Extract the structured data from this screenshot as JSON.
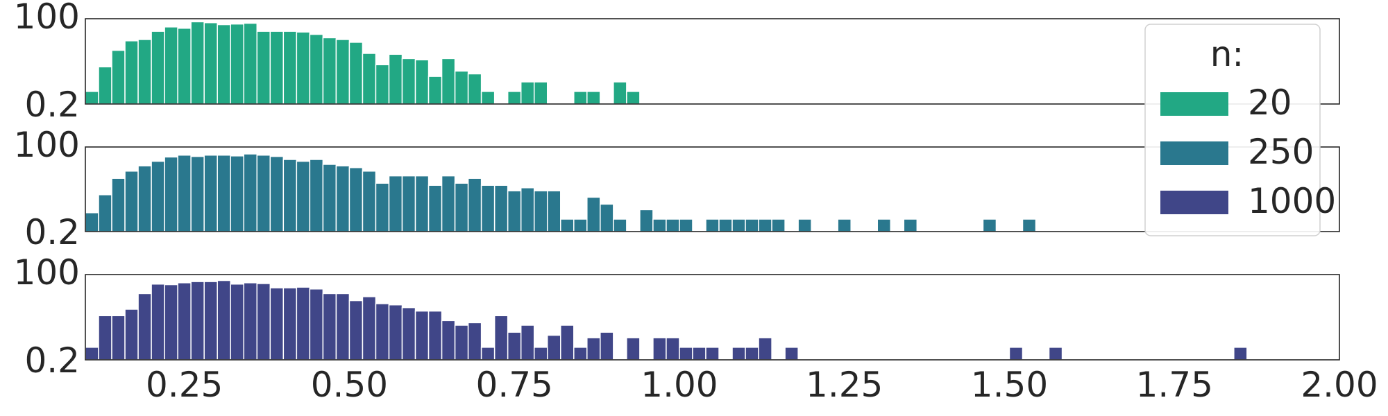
{
  "chart_data": {
    "type": "bar",
    "y_scale": "log",
    "y_ticks": [
      "100",
      "0.2"
    ],
    "x_ticks": [
      "0.25",
      "0.50",
      "0.75",
      "1.00",
      "1.25",
      "1.50",
      "1.75",
      "2.00"
    ],
    "xlim": [
      0.1,
      2.0
    ],
    "ylim": [
      0.2,
      100
    ],
    "grid": false,
    "legend": {
      "title": "n:",
      "placement": "top-right"
    },
    "bin_width": 0.02,
    "series": [
      {
        "name": "20",
        "color": "#22a884",
        "values": [
          [
            0.11,
            0.5
          ],
          [
            0.13,
            3
          ],
          [
            0.15,
            10
          ],
          [
            0.17,
            20
          ],
          [
            0.19,
            22
          ],
          [
            0.21,
            40
          ],
          [
            0.23,
            55
          ],
          [
            0.25,
            50
          ],
          [
            0.27,
            80
          ],
          [
            0.29,
            75
          ],
          [
            0.31,
            65
          ],
          [
            0.33,
            68
          ],
          [
            0.35,
            72
          ],
          [
            0.37,
            40
          ],
          [
            0.39,
            40
          ],
          [
            0.41,
            40
          ],
          [
            0.43,
            38
          ],
          [
            0.45,
            32
          ],
          [
            0.47,
            25
          ],
          [
            0.49,
            22
          ],
          [
            0.51,
            18
          ],
          [
            0.53,
            8
          ],
          [
            0.55,
            3.5
          ],
          [
            0.57,
            7.5
          ],
          [
            0.59,
            5.5
          ],
          [
            0.61,
            5
          ],
          [
            0.63,
            1.5
          ],
          [
            0.65,
            5.5
          ],
          [
            0.67,
            2.2
          ],
          [
            0.69,
            1.8
          ],
          [
            0.71,
            0.5
          ],
          [
            0.75,
            0.5
          ],
          [
            0.77,
            1
          ],
          [
            0.79,
            1
          ],
          [
            0.85,
            0.5
          ],
          [
            0.87,
            0.5
          ],
          [
            0.91,
            1
          ],
          [
            0.93,
            0.5
          ]
        ]
      },
      {
        "name": "250",
        "color": "#2a788e",
        "values": [
          [
            0.11,
            0.8
          ],
          [
            0.13,
            3
          ],
          [
            0.15,
            10
          ],
          [
            0.17,
            17
          ],
          [
            0.19,
            25
          ],
          [
            0.21,
            35
          ],
          [
            0.23,
            48
          ],
          [
            0.25,
            55
          ],
          [
            0.27,
            50
          ],
          [
            0.29,
            55
          ],
          [
            0.31,
            55
          ],
          [
            0.33,
            52
          ],
          [
            0.35,
            60
          ],
          [
            0.37,
            55
          ],
          [
            0.39,
            50
          ],
          [
            0.41,
            40
          ],
          [
            0.43,
            35
          ],
          [
            0.45,
            40
          ],
          [
            0.47,
            28
          ],
          [
            0.49,
            25
          ],
          [
            0.51,
            22
          ],
          [
            0.53,
            17
          ],
          [
            0.55,
            7
          ],
          [
            0.57,
            12
          ],
          [
            0.59,
            12
          ],
          [
            0.61,
            12
          ],
          [
            0.63,
            6
          ],
          [
            0.65,
            12
          ],
          [
            0.67,
            7
          ],
          [
            0.69,
            10
          ],
          [
            0.71,
            6
          ],
          [
            0.73,
            6
          ],
          [
            0.75,
            4
          ],
          [
            0.77,
            5
          ],
          [
            0.79,
            4
          ],
          [
            0.81,
            4
          ],
          [
            0.83,
            0.5
          ],
          [
            0.85,
            0.5
          ],
          [
            0.87,
            2.5
          ],
          [
            0.89,
            1.5
          ],
          [
            0.91,
            0.5
          ],
          [
            0.95,
            1
          ],
          [
            0.97,
            0.5
          ],
          [
            0.99,
            0.5
          ],
          [
            1.01,
            0.5
          ],
          [
            1.05,
            0.5
          ],
          [
            1.07,
            0.5
          ],
          [
            1.09,
            0.5
          ],
          [
            1.11,
            0.5
          ],
          [
            1.13,
            0.5
          ],
          [
            1.15,
            0.5
          ],
          [
            1.19,
            0.5
          ],
          [
            1.25,
            0.5
          ],
          [
            1.31,
            0.5
          ],
          [
            1.35,
            0.5
          ],
          [
            1.47,
            0.5
          ],
          [
            1.53,
            0.5
          ]
        ]
      },
      {
        "name": "1000",
        "color": "#404688",
        "values": [
          [
            0.11,
            0.5
          ],
          [
            0.13,
            5
          ],
          [
            0.15,
            5
          ],
          [
            0.17,
            8
          ],
          [
            0.19,
            25
          ],
          [
            0.21,
            50
          ],
          [
            0.23,
            48
          ],
          [
            0.25,
            55
          ],
          [
            0.27,
            60
          ],
          [
            0.29,
            60
          ],
          [
            0.31,
            65
          ],
          [
            0.33,
            50
          ],
          [
            0.35,
            55
          ],
          [
            0.37,
            52
          ],
          [
            0.39,
            38
          ],
          [
            0.41,
            38
          ],
          [
            0.43,
            40
          ],
          [
            0.45,
            35
          ],
          [
            0.47,
            25
          ],
          [
            0.49,
            25
          ],
          [
            0.51,
            15
          ],
          [
            0.53,
            20
          ],
          [
            0.55,
            12
          ],
          [
            0.57,
            11
          ],
          [
            0.59,
            9
          ],
          [
            0.61,
            7
          ],
          [
            0.63,
            7
          ],
          [
            0.65,
            3.5
          ],
          [
            0.67,
            2.5
          ],
          [
            0.69,
            3
          ],
          [
            0.71,
            0.5
          ],
          [
            0.73,
            5
          ],
          [
            0.75,
            1.5
          ],
          [
            0.77,
            2.5
          ],
          [
            0.79,
            0.5
          ],
          [
            0.81,
            1.2
          ],
          [
            0.83,
            2.5
          ],
          [
            0.85,
            0.5
          ],
          [
            0.87,
            1
          ],
          [
            0.89,
            1.5
          ],
          [
            0.93,
            1
          ],
          [
            0.97,
            1
          ],
          [
            0.99,
            1
          ],
          [
            1.01,
            0.5
          ],
          [
            1.03,
            0.5
          ],
          [
            1.05,
            0.5
          ],
          [
            1.09,
            0.5
          ],
          [
            1.11,
            0.5
          ],
          [
            1.13,
            1
          ],
          [
            1.17,
            0.5
          ],
          [
            1.51,
            0.5
          ],
          [
            1.57,
            0.5
          ],
          [
            1.85,
            0.5
          ]
        ]
      }
    ]
  }
}
